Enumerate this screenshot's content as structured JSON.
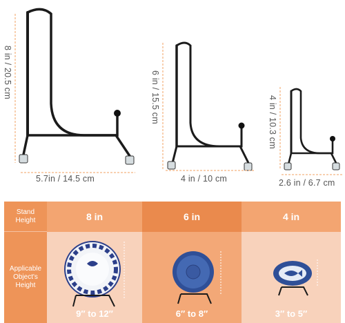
{
  "stands": [
    {
      "height_label": "8 in / 20.5 cm",
      "width_label": "5.7in / 14.5 cm"
    },
    {
      "height_label": "6 in / 15.5 cm",
      "width_label": "4 in / 10 cm"
    },
    {
      "height_label": "4 in / 10.3 cm",
      "width_label": "2.6 in / 6.7 cm"
    }
  ],
  "table": {
    "row_labels": {
      "stand_height": "Stand Height",
      "applicable_object": "Applicable Object's Height"
    },
    "columns": [
      {
        "stand": "8 in",
        "range": "9″ to 12″",
        "object": "patterned-plate"
      },
      {
        "stand": "6 in",
        "range": "6″ to 8″",
        "object": "blue-bowl"
      },
      {
        "stand": "4 in",
        "range": "3″ to 5″",
        "object": "fish-dish"
      }
    ]
  },
  "colors": {
    "label_column": "#ee9458",
    "header_row": "#f3a571",
    "highlight_column": "#ea8a4d",
    "body_light": "#f8d2bb",
    "stand_metal": "#1b1b1b",
    "dimension_line": "#f0a060"
  }
}
